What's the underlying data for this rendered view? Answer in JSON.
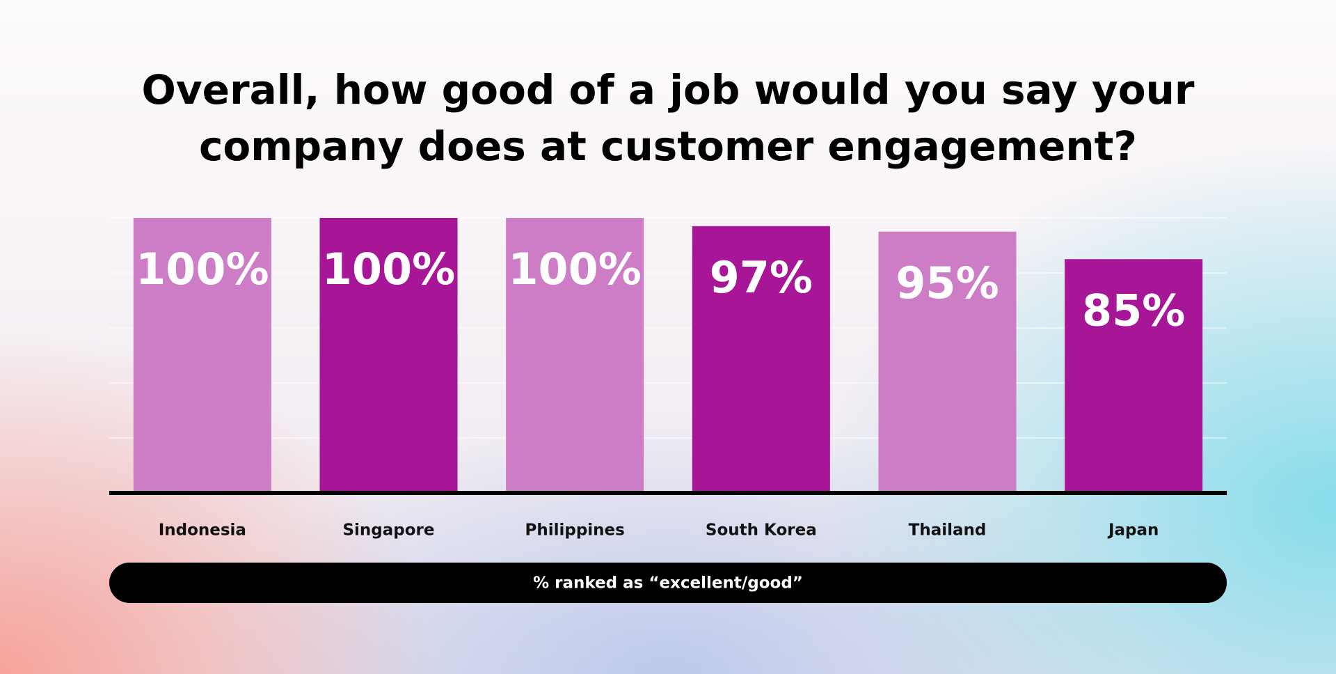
{
  "chart_data": {
    "type": "bar",
    "title": [
      "Overall, how good of a job would you say your",
      "company does at customer engagement?"
    ],
    "categories": [
      "Indonesia",
      "Singapore",
      "Philippines",
      "South Korea",
      "Thailand",
      "Japan"
    ],
    "values": [
      100,
      100,
      100,
      97,
      95,
      85
    ],
    "value_labels": [
      "100%",
      "100%",
      "100%",
      "97%",
      "95%",
      "85%"
    ],
    "colors": [
      "#cc7dc6",
      "#a61696",
      "#cc7dc6",
      "#a61696",
      "#cc7dc6",
      "#a61696"
    ],
    "x_label": "% ranked as “excellent/good”",
    "ylim": [
      0,
      100
    ],
    "yticks": [
      0,
      20,
      40,
      60,
      80,
      100
    ],
    "grid": true
  }
}
